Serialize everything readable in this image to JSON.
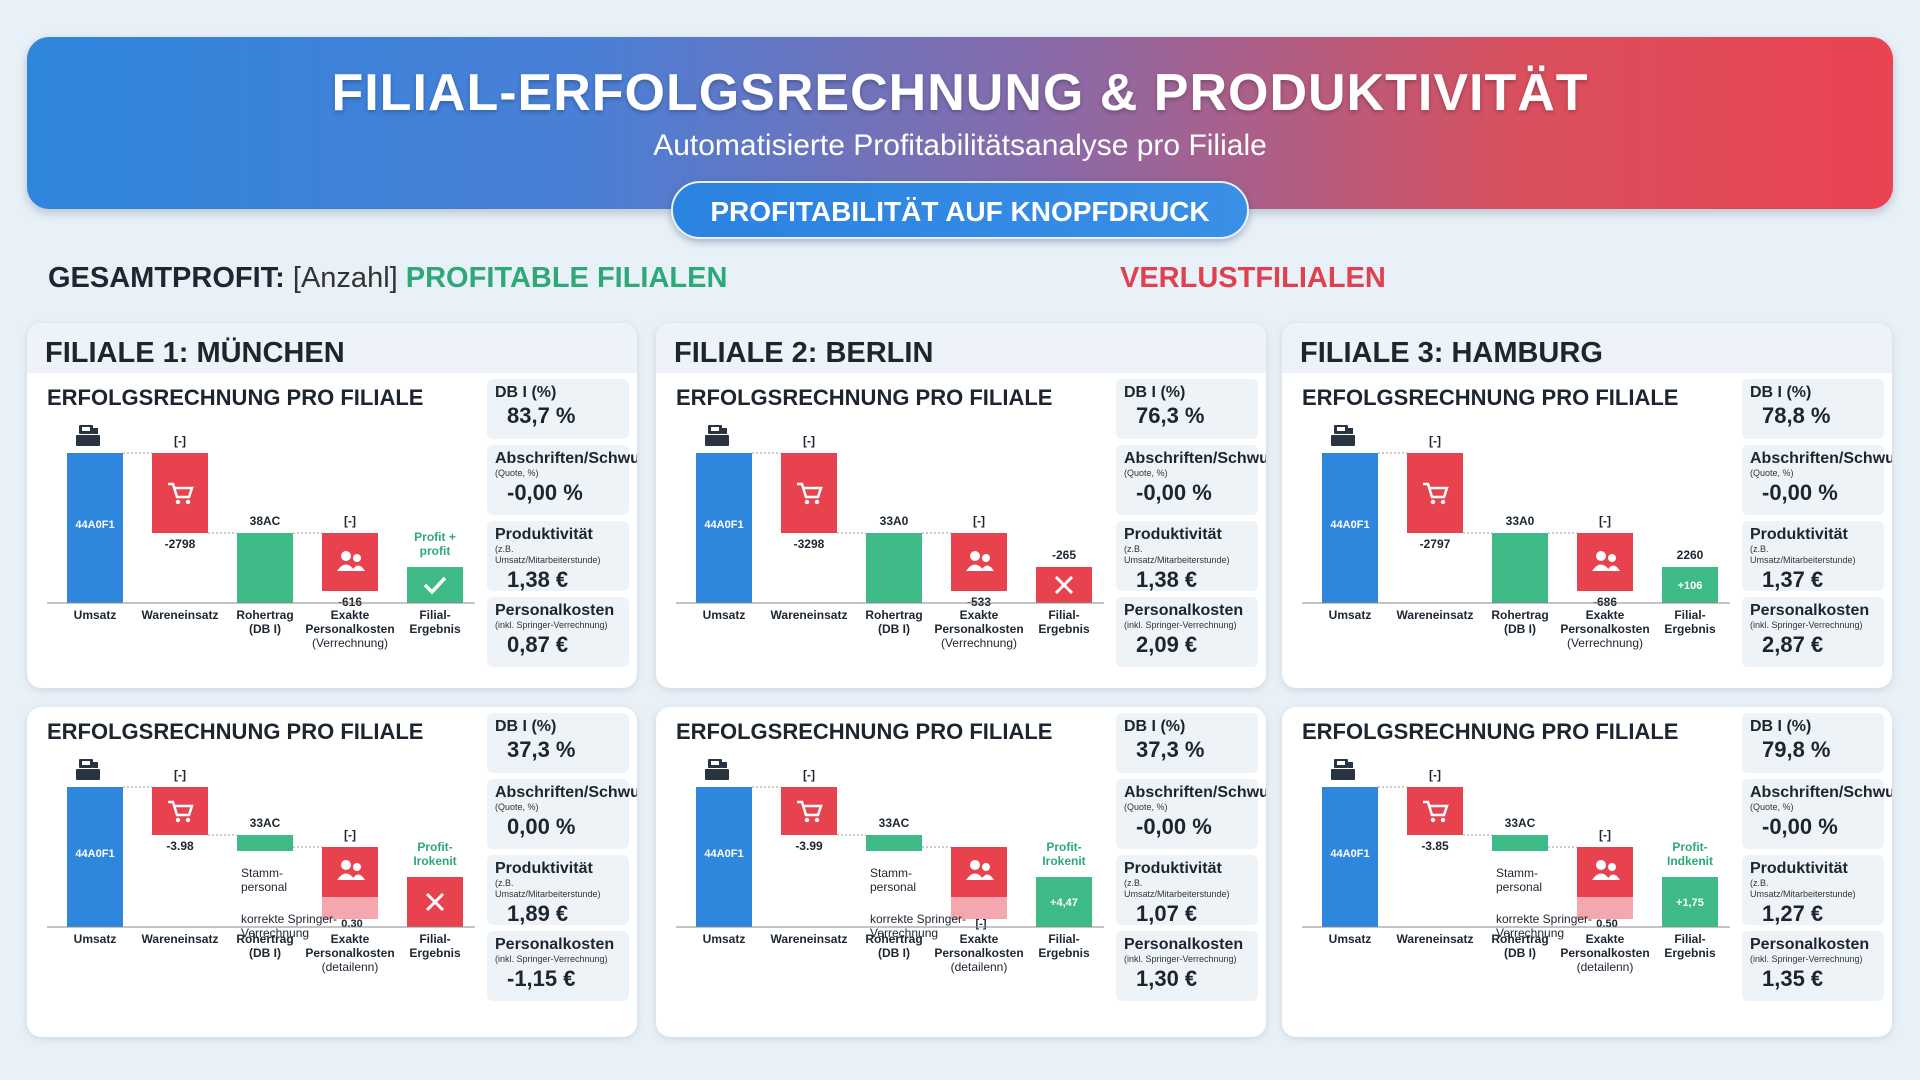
{
  "header": {
    "title": "FILIAL-ERFOLGSRECHNUNG & PRODUKTIVITÄT",
    "subtitle": "Automatisierte Profitabilitätsanalyse pro Filiale",
    "cta_label": "PROFITABILITÄT AUF KNOPFDRUCK"
  },
  "summary": {
    "prefix": "GESAMTPROFIT:",
    "placeholder": "[Anzahl]",
    "profitable_label": "PROFITABLE FILIALEN",
    "loss_label": "VERLUSTFILIALEN"
  },
  "colors": {
    "blue": "#2f86dd",
    "red": "#e8424f",
    "green": "#3dba85",
    "accent_green": "#2fa878"
  },
  "icons": [
    "cash-register-icon",
    "shopping-cart-icon",
    "people-icon",
    "check-icon",
    "close-icon"
  ],
  "x_labels": [
    "Umsatz",
    "Wareneinsatz",
    "Rohertrag (DB I)",
    "Exakte Personalkosten (Verrechnung)",
    "Filial-Ergebnis"
  ],
  "x_labels_detail": [
    "Umsatz",
    "Wareneinsatz",
    "Rohertrag (DB I)",
    "Exakte Personalkosten (detailenn)",
    "Filial-Ergebnis"
  ],
  "kpi_labels": {
    "db": "DB I (%)",
    "abschr": "Abschriften/Schwund",
    "abschr_sub": "(Quote, %)",
    "prod": "Produktivität",
    "prod_sub": "(z.B. Umsatz/Mitarbeiterstunde)",
    "pers": "Personalkosten",
    "pers_sub": "(inkl. Springer-Verrechnung)"
  },
  "section_title": "ERFOLGSRECHNUNG PRO FILIALE",
  "cards": [
    {
      "name": "FILIALE 1: MÜNCHEN",
      "umsatz": "44A0F1",
      "ware_top": "[-]",
      "ware": "-2798",
      "roh": "38AC",
      "pers_top": "[-]",
      "pers": "-616",
      "result": "Profit + profit",
      "result_kind": "check",
      "kpi": {
        "db": "83,7 %",
        "abschr": "-0,00 %",
        "prod": "1,38 €",
        "pers": "0,87 €"
      }
    },
    {
      "name": "FILIALE 2: BERLIN",
      "umsatz": "44A0F1",
      "ware_top": "[-]",
      "ware": "-3298",
      "roh": "33A0",
      "pers_top": "[-]",
      "pers": "-533",
      "result": "-265",
      "result_kind": "cross",
      "kpi": {
        "db": "76,3 %",
        "abschr": "-0,00 %",
        "prod": "1,38 €",
        "pers": "2,09 €"
      }
    },
    {
      "name": "FILIALE 3: HAMBURG",
      "umsatz": "44A0F1",
      "ware_top": "[-]",
      "ware": "-2797",
      "roh": "33A0",
      "pers_top": "[-]",
      "pers": "-686",
      "result": "2260",
      "result_bar": "+106",
      "result_kind": "value",
      "kpi": {
        "db": "78,8 %",
        "abschr": "-0,00 %",
        "prod": "1,37 €",
        "pers": "2,87 €"
      }
    },
    {
      "umsatz": "44A0F1",
      "ware_top": "[-]",
      "ware": "-3.98",
      "roh": "33AC",
      "pers_top": "[-]",
      "stamm": "Stamm-personal",
      "springer": "korrekte Springer-Verrechnung",
      "springer_val": "0.30",
      "result": "Profit-Irokenit",
      "result_kind": "cross",
      "kpi": {
        "db": "37,3 %",
        "abschr": "0,00 %",
        "prod": "1,89 €",
        "pers": "-1,15 €"
      }
    },
    {
      "umsatz": "44A0F1",
      "ware_top": "[-]",
      "ware": "-3.99",
      "roh": "33AC",
      "stamm": "Stamm-personal",
      "springer": "korrekte Springer-Verrechnung",
      "springer_val": "[-]",
      "result": "Profit-Irokenit",
      "result_bar": "+4,47",
      "result_kind": "value",
      "kpi": {
        "db": "37,3 %",
        "abschr": "-0,00 %",
        "prod": "1,07 €",
        "pers": "1,30 €"
      }
    },
    {
      "umsatz": "44A0F1",
      "ware_top": "[-]",
      "ware": "-3.85",
      "roh": "33AC",
      "pers_top": "[-]",
      "stamm": "Stamm-personal",
      "springer": "korrekte Springer-Verrechnung",
      "springer_val": "0.50",
      "result": "Profit-Indkenit",
      "result_bar": "+1,75",
      "result_kind": "value",
      "kpi": {
        "db": "79,8 %",
        "abschr": "-0,00 %",
        "prod": "1,27 €",
        "pers": "1,35 €"
      }
    }
  ]
}
